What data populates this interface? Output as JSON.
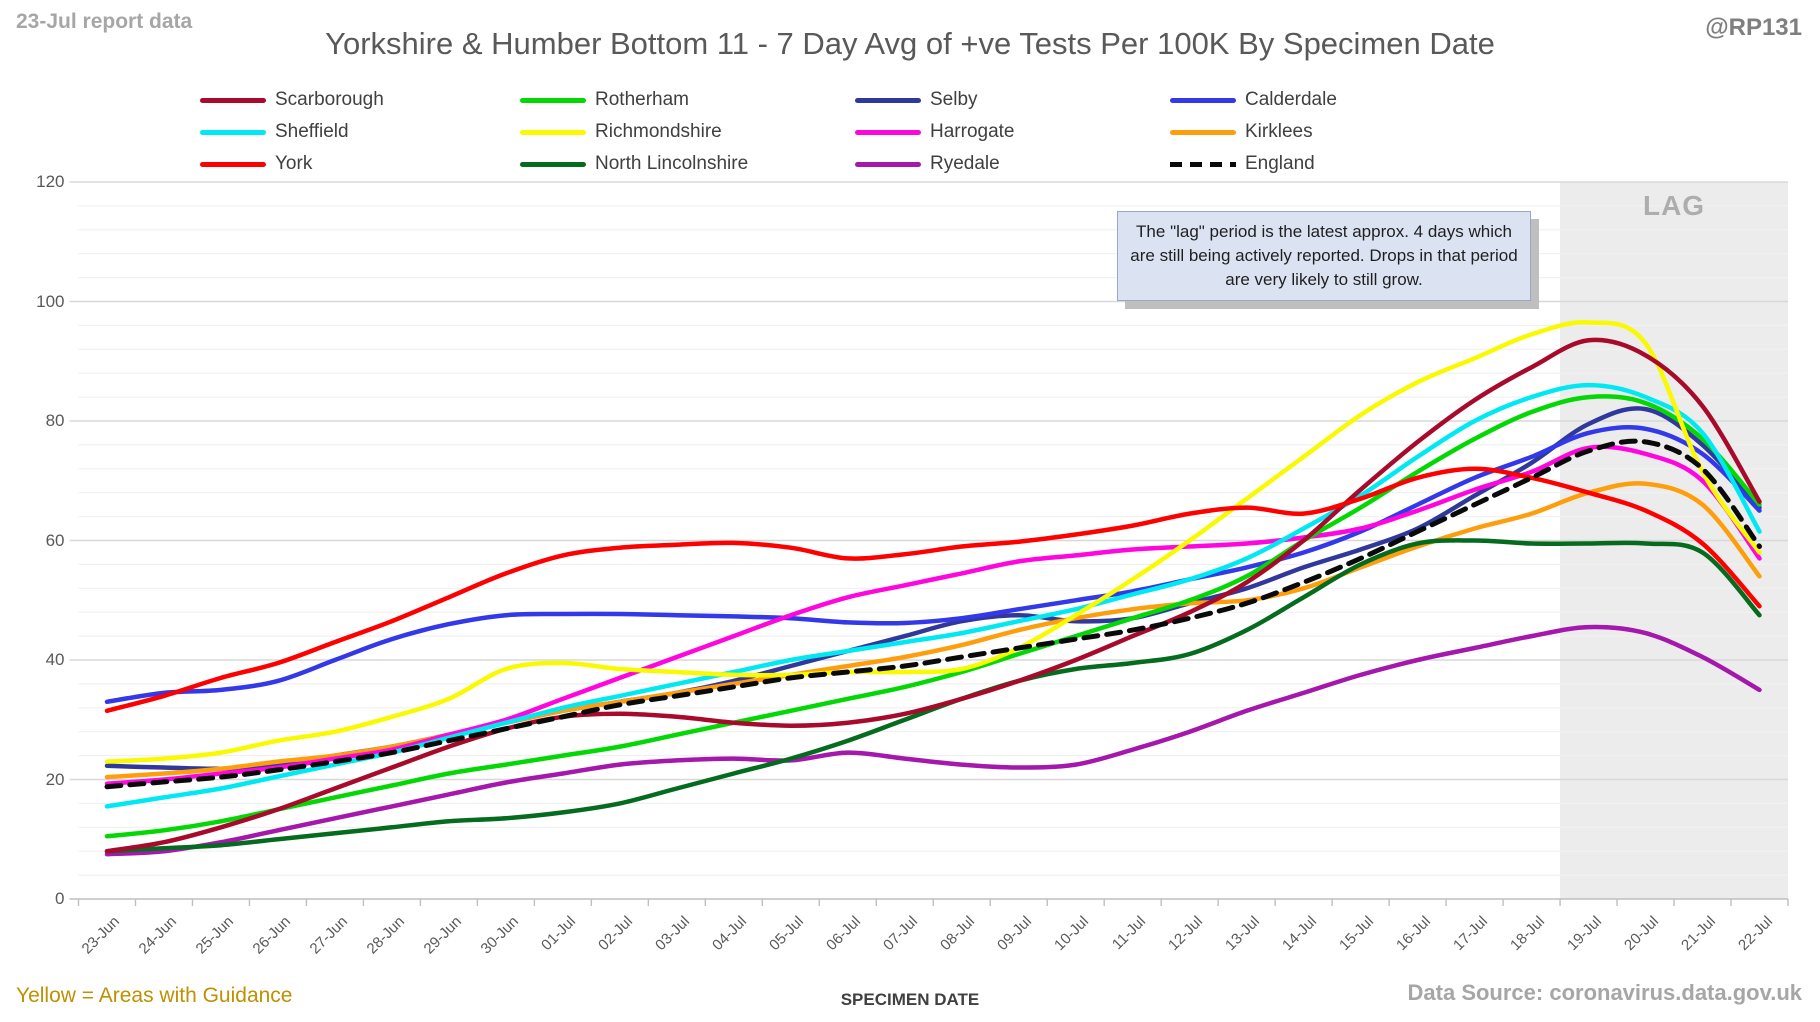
{
  "header": {
    "report_note": "23-Jul report data",
    "title": "Yorkshire & Humber Bottom 11 - 7 Day Avg of +ve Tests Per 100K By Specimen Date",
    "watermark": "@RP131"
  },
  "annotation": {
    "text": "The \"lag\" period is the latest approx. 4 days which are still being actively reported.  Drops in that period are very likely to still grow."
  },
  "footer": {
    "note": "Yellow = Areas with Guidance",
    "xlabel": "SPECIMEN DATE",
    "source": "Data Source: coronavirus.data.gov.uk"
  },
  "chart_data": {
    "type": "line",
    "title": "Yorkshire & Humber Bottom 11 - 7 Day Avg of +ve Tests Per 100K By Specimen Date",
    "xlabel": "SPECIMEN DATE",
    "ylabel": "",
    "ylim": [
      0,
      120
    ],
    "y_major_unit": 20,
    "y_minor_unit": 4,
    "grid": "horizontal major and minor, light gray",
    "legend_position": "top, 4 columns x 3 rows",
    "lag_region": {
      "label": "LAG",
      "covers_dates": [
        "19-Jul",
        "20-Jul",
        "21-Jul",
        "22-Jul"
      ],
      "start_boundary_index": 26,
      "fill": "#ececec"
    },
    "x": [
      "23-Jun",
      "24-Jun",
      "25-Jun",
      "26-Jun",
      "27-Jun",
      "28-Jun",
      "29-Jun",
      "30-Jun",
      "01-Jul",
      "02-Jul",
      "03-Jul",
      "04-Jul",
      "05-Jul",
      "06-Jul",
      "07-Jul",
      "08-Jul",
      "09-Jul",
      "10-Jul",
      "11-Jul",
      "12-Jul",
      "13-Jul",
      "14-Jul",
      "15-Jul",
      "16-Jul",
      "17-Jul",
      "18-Jul",
      "19-Jul",
      "20-Jul",
      "21-Jul",
      "22-Jul"
    ],
    "series": [
      {
        "name": "Scarborough",
        "color": "#a80a2c",
        "dash": false,
        "values": [
          8,
          9.5,
          12,
          15,
          18.5,
          22,
          25.5,
          28.5,
          30.5,
          31,
          30.5,
          29.5,
          29,
          29.5,
          31,
          33.5,
          36.5,
          40,
          44,
          48,
          53,
          60,
          68.5,
          76.5,
          83.5,
          89,
          93.5,
          91,
          82.5,
          66.5
        ]
      },
      {
        "name": "Sheffield",
        "color": "#00e9f2",
        "dash": false,
        "values": [
          15.5,
          17,
          18.5,
          20.5,
          22.5,
          24.5,
          27,
          29.5,
          32,
          34,
          36,
          38,
          40,
          41.5,
          43,
          44.5,
          46.5,
          48.5,
          51,
          53.5,
          57,
          62,
          67.5,
          74,
          80,
          84,
          86,
          84,
          78,
          61.5
        ]
      },
      {
        "name": "York",
        "color": "#fe0000",
        "dash": false,
        "values": [
          31.5,
          34,
          37,
          39.5,
          43,
          46.5,
          50.5,
          54.5,
          57.5,
          58.8,
          59.3,
          59.6,
          58.8,
          57,
          57.7,
          59,
          59.8,
          61,
          62.5,
          64.5,
          65.5,
          64.5,
          67,
          70.5,
          72,
          70.5,
          68,
          65,
          59.5,
          49
        ]
      },
      {
        "name": "Rotherham",
        "color": "#04d804",
        "dash": false,
        "values": [
          10.5,
          11.5,
          13,
          15,
          17,
          19,
          21,
          22.5,
          24,
          25.5,
          27.5,
          29.5,
          31.5,
          33.5,
          35.5,
          38,
          41,
          44,
          47,
          50,
          54,
          60,
          65.5,
          71.5,
          77,
          81.5,
          84,
          83,
          77,
          66
        ]
      },
      {
        "name": "Richmondshire",
        "color": "#f9f900",
        "dash": false,
        "values": [
          23,
          23.5,
          24.5,
          26.5,
          28,
          30.5,
          33.5,
          38.5,
          39.5,
          38.5,
          38,
          37.5,
          37.5,
          38,
          38,
          38.5,
          42,
          47.5,
          53.5,
          60,
          67,
          74,
          81,
          86.5,
          90.5,
          94.5,
          96.5,
          93,
          71.5,
          58
        ]
      },
      {
        "name": "North Lincolnshire",
        "color": "#056b1e",
        "dash": false,
        "values": [
          8,
          8.5,
          9,
          10,
          11,
          12,
          13,
          13.5,
          14.5,
          16,
          18.5,
          21,
          23.5,
          26.5,
          30,
          33.5,
          36.5,
          38.5,
          39.5,
          41,
          45,
          50.5,
          56,
          59.5,
          60,
          59.5,
          59.5,
          59.5,
          58,
          47.5
        ]
      },
      {
        "name": "Selby",
        "color": "#30389c",
        "dash": false,
        "values": [
          22.3,
          22,
          21.8,
          22.5,
          24,
          25.5,
          27.5,
          29.5,
          31.5,
          33,
          34.5,
          36.5,
          39,
          41.5,
          44,
          46.5,
          47.5,
          46.5,
          47,
          49.5,
          52,
          55.5,
          58.5,
          62,
          67.5,
          73,
          79.5,
          82,
          76,
          65.5
        ]
      },
      {
        "name": "Harrogate",
        "color": "#ff06de",
        "dash": false,
        "values": [
          19.3,
          20,
          21,
          22,
          23.5,
          25,
          27.5,
          30,
          33.5,
          37,
          40.5,
          44,
          47.5,
          50.5,
          52.5,
          54.5,
          56.5,
          57.5,
          58.5,
          59,
          59.5,
          60.5,
          62,
          65,
          68.5,
          71.5,
          75.5,
          74.5,
          70,
          57
        ]
      },
      {
        "name": "Ryedale",
        "color": "#a518ac",
        "dash": false,
        "values": [
          7.5,
          8,
          9.5,
          11.5,
          13.5,
          15.5,
          17.5,
          19.5,
          21,
          22.5,
          23.2,
          23.5,
          23.2,
          24.5,
          23.5,
          22.5,
          22,
          22.5,
          25,
          28,
          31.5,
          34.5,
          37.5,
          40,
          42,
          44,
          45.5,
          44.5,
          40.5,
          35
        ]
      },
      {
        "name": "Calderdale",
        "color": "#3338e8",
        "dash": false,
        "values": [
          33,
          34.5,
          35,
          36.5,
          40,
          43.5,
          46,
          47.5,
          47.7,
          47.7,
          47.5,
          47.3,
          47,
          46.3,
          46.2,
          47,
          48.5,
          50,
          51.5,
          53.5,
          55.5,
          58,
          61.5,
          66,
          70.5,
          74,
          78,
          78.7,
          74.5,
          65
        ]
      },
      {
        "name": "Kirklees",
        "color": "#ff9e0d",
        "dash": false,
        "values": [
          20.4,
          21,
          21.8,
          23,
          24,
          25.5,
          27.5,
          29.5,
          31.5,
          33,
          34.5,
          36,
          37.5,
          39,
          40.5,
          42.5,
          45,
          47,
          48.5,
          49.5,
          50,
          52,
          55.5,
          59,
          62,
          64.5,
          68,
          69.5,
          66,
          54
        ]
      },
      {
        "name": "England",
        "color": "#0a0a0a",
        "dash": true,
        "values": [
          18.8,
          19.6,
          20.4,
          21.6,
          23,
          24.5,
          26.5,
          28.5,
          30.5,
          32.5,
          34,
          35.5,
          37,
          38,
          39,
          40.5,
          42,
          43.5,
          45,
          47,
          49.5,
          53,
          57,
          61.5,
          66,
          70.5,
          75,
          76.5,
          72,
          59
        ]
      }
    ],
    "legend_order": [
      "Scarborough",
      "Sheffield",
      "York",
      "Rotherham",
      "Richmondshire",
      "North Lincolnshire",
      "Selby",
      "Harrogate",
      "Ryedale",
      "Calderdale",
      "Kirklees",
      "England"
    ],
    "draw_order": [
      "Selby",
      "Calderdale",
      "Kirklees",
      "Harrogate",
      "Ryedale",
      "North Lincolnshire",
      "Rotherham",
      "Sheffield",
      "Richmondshire",
      "Scarborough",
      "York",
      "England"
    ]
  }
}
